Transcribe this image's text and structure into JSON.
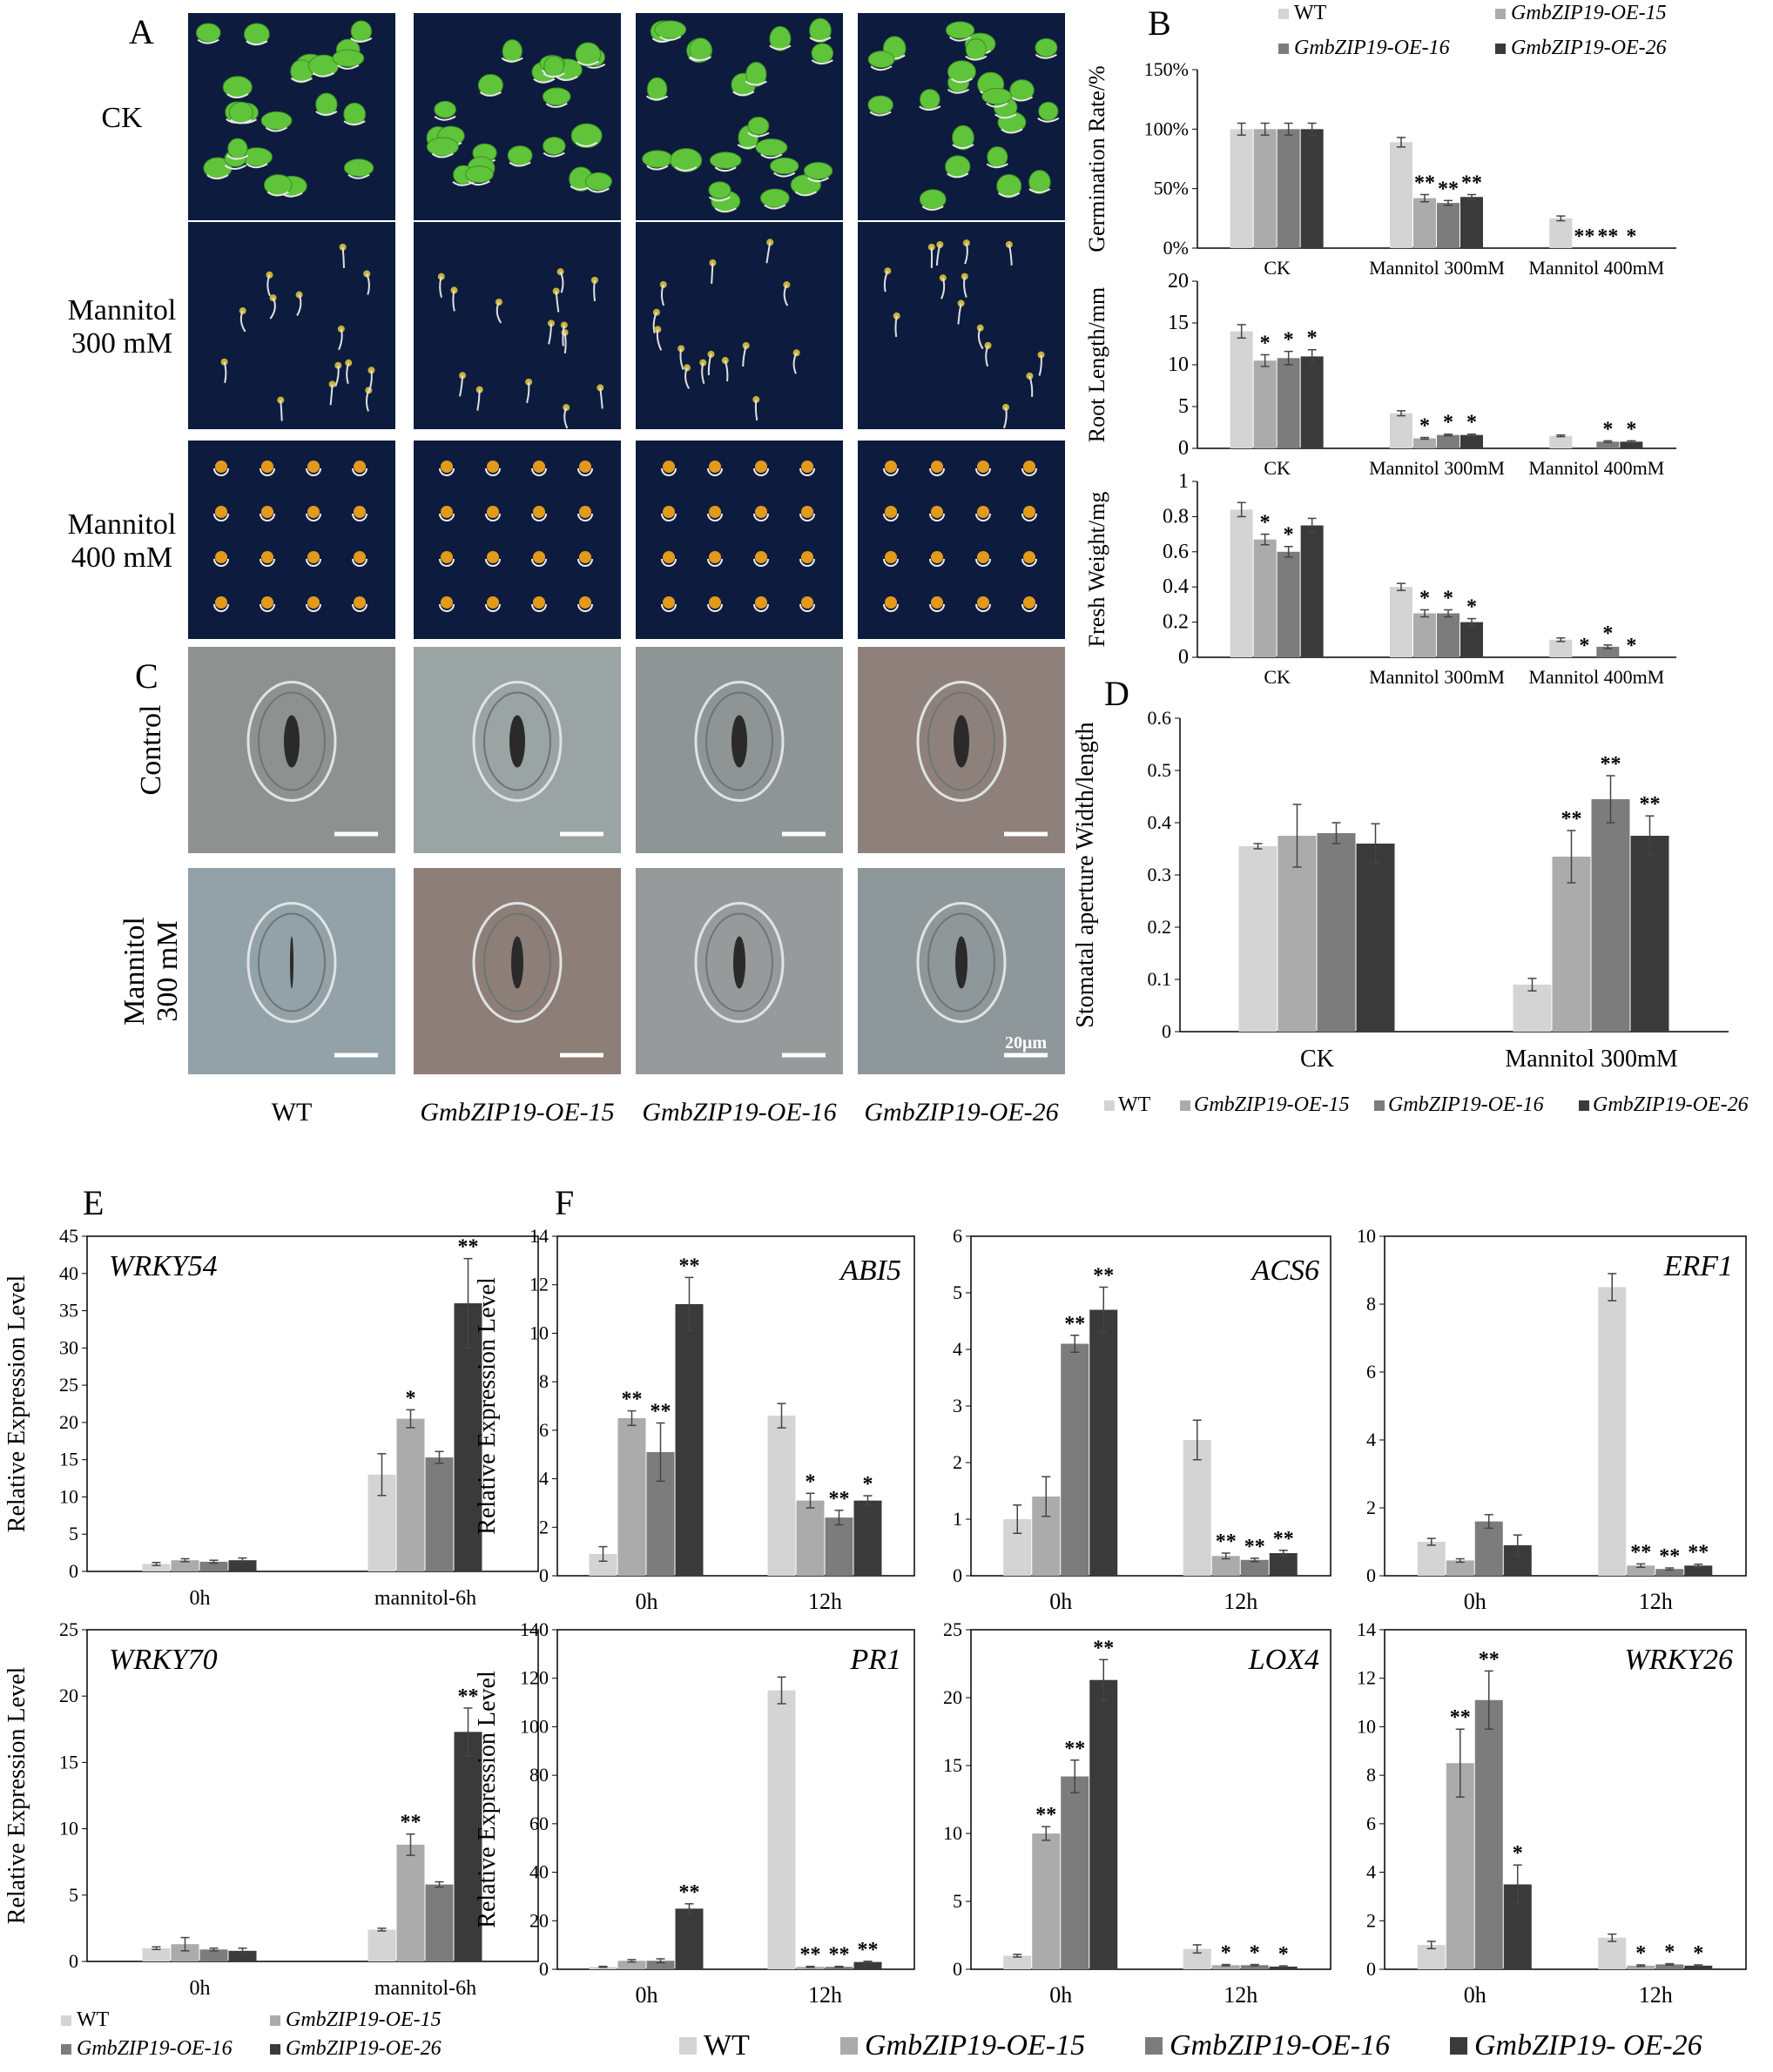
{
  "colors": {
    "WT": "#d4d4d4",
    "OE15": "#ababab",
    "OE16": "#7c7c7c",
    "OE26": "#3a3a3a"
  },
  "legend": [
    {
      "key": "WT",
      "label": "WT",
      "italic": false
    },
    {
      "key": "OE15",
      "label": "GmbZIP19-OE-15",
      "italic": true
    },
    {
      "key": "OE16",
      "label": "GmbZIP19-OE-16",
      "italic": true
    },
    {
      "key": "OE26",
      "label": "GmbZIP19-OE-26",
      "italic": true
    }
  ],
  "legend_F": [
    {
      "key": "WT",
      "label": "WT"
    },
    {
      "key": "OE15",
      "label": "GmbZIP19-OE-15"
    },
    {
      "key": "OE16",
      "label": "GmbZIP19-OE-16"
    },
    {
      "key": "OE26",
      "label": "GmbZIP19- OE-26"
    }
  ],
  "panel_letters": [
    "A",
    "B",
    "C",
    "D",
    "E",
    "F"
  ],
  "photos_A": {
    "row_labels": [
      [
        "CK"
      ],
      [
        "Mannitol",
        "300 mM"
      ],
      [
        "Mannitol",
        "400 mM"
      ]
    ],
    "row_types": [
      "green",
      "sparse",
      "seeds"
    ]
  },
  "photos_C": {
    "row_labels": [
      [
        "Control"
      ],
      [
        "Mannitol",
        "300 mM"
      ]
    ],
    "scale_bar": "20μm",
    "column_labels": [
      {
        "text": "WT",
        "italic": false
      },
      {
        "text": "GmbZIP19-OE-15",
        "italic": true
      },
      {
        "text": "GmbZIP19-OE-16",
        "italic": true
      },
      {
        "text": "GmbZIP19-OE-26",
        "italic": true
      }
    ],
    "tints": [
      [
        "#8d9290",
        "#9aa4a2",
        "#8f9494",
        "#8e817b"
      ],
      [
        "#93a1a8",
        "#8d7e78",
        "#969a9a",
        "#8e9799"
      ]
    ]
  },
  "chart_data": [
    {
      "id": "B1",
      "type": "bar",
      "ylabel": "Germination Rate/%",
      "yticks": [
        "0%",
        "50%",
        "100%",
        "150%"
      ],
      "ylim": [
        0,
        150
      ],
      "categories": [
        "CK",
        "Mannitol 300mM",
        "Mannitol 400mM"
      ],
      "series": [
        {
          "name": "WT",
          "values": [
            100,
            89,
            25
          ],
          "err": [
            5,
            4,
            2
          ]
        },
        {
          "name": "GmbZIP19-OE-15",
          "values": [
            100,
            42,
            0
          ],
          "err": [
            5,
            3,
            0
          ]
        },
        {
          "name": "GmbZIP19-OE-16",
          "values": [
            100,
            38,
            0
          ],
          "err": [
            5,
            2,
            0
          ]
        },
        {
          "name": "GmbZIP19-OE-26",
          "values": [
            100,
            43,
            0
          ],
          "err": [
            5,
            2,
            0
          ]
        }
      ],
      "stars": [
        [
          "",
          "",
          ""
        ],
        [
          "",
          "**",
          "**"
        ],
        [
          "",
          "**",
          "**"
        ],
        [
          "",
          "**",
          "*"
        ]
      ]
    },
    {
      "id": "B2",
      "type": "bar",
      "ylabel": "Root Length/mm",
      "yticks": [
        "0",
        "5",
        "10",
        "15",
        "20"
      ],
      "ylim": [
        0,
        20
      ],
      "categories": [
        "CK",
        "Mannitol 300mM",
        "Mannitol 400mM"
      ],
      "series": [
        {
          "name": "WT",
          "values": [
            14,
            4.2,
            1.5
          ],
          "err": [
            0.8,
            0.3,
            0.1
          ]
        },
        {
          "name": "GmbZIP19-OE-15",
          "values": [
            10.5,
            1.2,
            0
          ],
          "err": [
            0.7,
            0.1,
            0
          ]
        },
        {
          "name": "GmbZIP19-OE-16",
          "values": [
            10.8,
            1.6,
            0.8
          ],
          "err": [
            0.8,
            0.1,
            0.1
          ]
        },
        {
          "name": "GmbZIP19-OE-26",
          "values": [
            11,
            1.6,
            0.8
          ],
          "err": [
            0.8,
            0.1,
            0.1
          ]
        }
      ],
      "stars": [
        [
          "",
          "",
          ""
        ],
        [
          "*",
          "*",
          ""
        ],
        [
          "*",
          "*",
          "*"
        ],
        [
          "*",
          "*",
          "*"
        ]
      ]
    },
    {
      "id": "B3",
      "type": "bar",
      "ylabel": "Fresh Weight/mg",
      "yticks": [
        "0",
        "0.2",
        "0.4",
        "0.6",
        "0.8",
        "1"
      ],
      "ylim": [
        0,
        1
      ],
      "categories": [
        "CK",
        "Mannitol 300mM",
        "Mannitol 400mM"
      ],
      "series": [
        {
          "name": "WT",
          "values": [
            0.84,
            0.4,
            0.1
          ],
          "err": [
            0.04,
            0.02,
            0.01
          ]
        },
        {
          "name": "GmbZIP19-OE-15",
          "values": [
            0.67,
            0.25,
            0
          ],
          "err": [
            0.03,
            0.02,
            0
          ]
        },
        {
          "name": "GmbZIP19-OE-16",
          "values": [
            0.6,
            0.25,
            0.06
          ],
          "err": [
            0.03,
            0.02,
            0.01
          ]
        },
        {
          "name": "GmbZIP19-OE-26",
          "values": [
            0.75,
            0.2,
            0
          ],
          "err": [
            0.04,
            0.02,
            0
          ]
        }
      ],
      "stars": [
        [
          "",
          "",
          ""
        ],
        [
          "*",
          "*",
          "*"
        ],
        [
          "*",
          "*",
          "*"
        ],
        [
          "",
          "*",
          "*"
        ]
      ]
    },
    {
      "id": "D",
      "type": "bar",
      "ylabel": "Stomatal aperture Width/length",
      "yticks": [
        "0",
        "0.1",
        "0.2",
        "0.3",
        "0.4",
        "0.5",
        "0.6"
      ],
      "ylim": [
        0,
        0.6
      ],
      "categories": [
        "CK",
        "Mannitol 300mM"
      ],
      "series": [
        {
          "name": "WT",
          "values": [
            0.355,
            0.09
          ],
          "err": [
            0.005,
            0.012
          ]
        },
        {
          "name": "GmbZIP19-OE-15",
          "values": [
            0.375,
            0.335
          ],
          "err": [
            0.06,
            0.05
          ]
        },
        {
          "name": "GmbZIP19-OE-16",
          "values": [
            0.38,
            0.445
          ],
          "err": [
            0.02,
            0.045
          ]
        },
        {
          "name": "GmbZIP19-OE-26",
          "values": [
            0.36,
            0.375
          ],
          "err": [
            0.038,
            0.038
          ]
        }
      ],
      "stars": [
        [
          "",
          ""
        ],
        [
          "",
          "**"
        ],
        [
          "",
          "**"
        ],
        [
          "",
          "**"
        ]
      ]
    },
    {
      "id": "E1",
      "type": "bar",
      "gene": "WRKY54",
      "ylabel": "Relative Expression Level",
      "yticks": [
        "0",
        "5",
        "10",
        "15",
        "20",
        "25",
        "30",
        "35",
        "40",
        "45"
      ],
      "ylim": [
        0,
        45
      ],
      "categories": [
        "0h",
        "mannitol-6h"
      ],
      "series": [
        {
          "name": "WT",
          "values": [
            1,
            13
          ],
          "err": [
            0.2,
            2.8
          ]
        },
        {
          "name": "GmbZIP19-OE-15",
          "values": [
            1.5,
            20.5
          ],
          "err": [
            0.2,
            1.2
          ]
        },
        {
          "name": "GmbZIP19-OE-16",
          "values": [
            1.3,
            15.3
          ],
          "err": [
            0.2,
            0.8
          ]
        },
        {
          "name": "GmbZIP19-OE-26",
          "values": [
            1.5,
            36
          ],
          "err": [
            0.3,
            6
          ]
        }
      ],
      "stars": [
        [
          "",
          ""
        ],
        [
          "",
          "*"
        ],
        [
          "",
          ""
        ],
        [
          "",
          "**"
        ]
      ]
    },
    {
      "id": "E2",
      "type": "bar",
      "gene": "WRKY70",
      "ylabel": "Relative Expression Level",
      "yticks": [
        "0",
        "5",
        "10",
        "15",
        "20",
        "25"
      ],
      "ylim": [
        0,
        25
      ],
      "categories": [
        "0h",
        "mannitol-6h"
      ],
      "series": [
        {
          "name": "WT",
          "values": [
            1,
            2.4
          ],
          "err": [
            0.1,
            0.1
          ]
        },
        {
          "name": "GmbZIP19-OE-15",
          "values": [
            1.3,
            8.8
          ],
          "err": [
            0.5,
            0.8
          ]
        },
        {
          "name": "GmbZIP19-OE-16",
          "values": [
            0.9,
            5.8
          ],
          "err": [
            0.1,
            0.2
          ]
        },
        {
          "name": "GmbZIP19-OE-26",
          "values": [
            0.8,
            17.3
          ],
          "err": [
            0.2,
            1.8
          ]
        }
      ],
      "stars": [
        [
          "",
          ""
        ],
        [
          "",
          "**"
        ],
        [
          "",
          ""
        ],
        [
          "",
          "**"
        ]
      ]
    },
    {
      "id": "F1",
      "type": "bar",
      "gene": "ABI5",
      "ylabel": "Relative Expression Level",
      "yticks": [
        "0",
        "2",
        "4",
        "6",
        "8",
        "10",
        "12",
        "14"
      ],
      "ylim": [
        0,
        14
      ],
      "categories": [
        "0h",
        "12h"
      ],
      "series": [
        {
          "name": "WT",
          "values": [
            0.9,
            6.6
          ],
          "err": [
            0.3,
            0.5
          ]
        },
        {
          "name": "GmbZIP19-OE-15",
          "values": [
            6.5,
            3.1
          ],
          "err": [
            0.3,
            0.3
          ]
        },
        {
          "name": "GmbZIP19-OE-16",
          "values": [
            5.1,
            2.4
          ],
          "err": [
            1.2,
            0.3
          ]
        },
        {
          "name": "GmbZIP19-OE-26",
          "values": [
            11.2,
            3.1
          ],
          "err": [
            1.1,
            0.2
          ]
        }
      ],
      "stars": [
        [
          "",
          ""
        ],
        [
          "**",
          "*"
        ],
        [
          "**",
          "**"
        ],
        [
          "**",
          "*"
        ]
      ]
    },
    {
      "id": "F2",
      "type": "bar",
      "gene": "ACS6",
      "ylabel": "",
      "yticks": [
        "0",
        "1",
        "2",
        "3",
        "4",
        "5",
        "6"
      ],
      "ylim": [
        0,
        6
      ],
      "categories": [
        "0h",
        "12h"
      ],
      "series": [
        {
          "name": "WT",
          "values": [
            1,
            2.4
          ],
          "err": [
            0.25,
            0.35
          ]
        },
        {
          "name": "GmbZIP19-OE-15",
          "values": [
            1.4,
            0.35
          ],
          "err": [
            0.35,
            0.05
          ]
        },
        {
          "name": "GmbZIP19-OE-16",
          "values": [
            4.1,
            0.28
          ],
          "err": [
            0.15,
            0.03
          ]
        },
        {
          "name": "GmbZIP19-OE-26",
          "values": [
            4.7,
            0.4
          ],
          "err": [
            0.4,
            0.05
          ]
        }
      ],
      "stars": [
        [
          "",
          ""
        ],
        [
          "",
          "**"
        ],
        [
          "**",
          "**"
        ],
        [
          "**",
          "**"
        ]
      ]
    },
    {
      "id": "F3",
      "type": "bar",
      "gene": "ERF1",
      "ylabel": "",
      "yticks": [
        "0",
        "2",
        "4",
        "6",
        "8",
        "10"
      ],
      "ylim": [
        0,
        10
      ],
      "categories": [
        "0h",
        "12h"
      ],
      "series": [
        {
          "name": "WT",
          "values": [
            1,
            8.5
          ],
          "err": [
            0.1,
            0.4
          ]
        },
        {
          "name": "GmbZIP19-OE-15",
          "values": [
            0.45,
            0.3
          ],
          "err": [
            0.05,
            0.05
          ]
        },
        {
          "name": "GmbZIP19-OE-16",
          "values": [
            1.6,
            0.2
          ],
          "err": [
            0.2,
            0.03
          ]
        },
        {
          "name": "GmbZIP19-OE-26",
          "values": [
            0.9,
            0.3
          ],
          "err": [
            0.3,
            0.04
          ]
        }
      ],
      "stars": [
        [
          "",
          ""
        ],
        [
          "",
          "**"
        ],
        [
          "",
          "**"
        ],
        [
          "",
          "**"
        ]
      ]
    },
    {
      "id": "F4",
      "type": "bar",
      "gene": "PR1",
      "ylabel": "Relative Expression Level",
      "yticks": [
        "0",
        "20",
        "40",
        "60",
        "80",
        "100",
        "120",
        "140"
      ],
      "ylim": [
        0,
        140
      ],
      "categories": [
        "0h",
        "12h"
      ],
      "series": [
        {
          "name": "WT",
          "values": [
            1,
            115
          ],
          "err": [
            0.2,
            5.5
          ]
        },
        {
          "name": "GmbZIP19-OE-15",
          "values": [
            3.5,
            1
          ],
          "err": [
            0.5,
            0.2
          ]
        },
        {
          "name": "GmbZIP19-OE-16",
          "values": [
            3.5,
            1
          ],
          "err": [
            0.8,
            0.2
          ]
        },
        {
          "name": "GmbZIP19-OE-26",
          "values": [
            25,
            3
          ],
          "err": [
            2,
            0.3
          ]
        }
      ],
      "stars": [
        [
          "",
          ""
        ],
        [
          "",
          "**"
        ],
        [
          "",
          "**"
        ],
        [
          "**",
          "**"
        ]
      ]
    },
    {
      "id": "F5",
      "type": "bar",
      "gene": "LOX4",
      "ylabel": "",
      "yticks": [
        "0",
        "5",
        "10",
        "15",
        "20",
        "25"
      ],
      "ylim": [
        0,
        25
      ],
      "categories": [
        "0h",
        "12h"
      ],
      "series": [
        {
          "name": "WT",
          "values": [
            1,
            1.5
          ],
          "err": [
            0.1,
            0.3
          ]
        },
        {
          "name": "GmbZIP19-OE-15",
          "values": [
            10,
            0.3
          ],
          "err": [
            0.5,
            0.05
          ]
        },
        {
          "name": "GmbZIP19-OE-16",
          "values": [
            14.2,
            0.3
          ],
          "err": [
            1.2,
            0.05
          ]
        },
        {
          "name": "GmbZIP19-OE-26",
          "values": [
            21.3,
            0.2
          ],
          "err": [
            1.5,
            0.05
          ]
        }
      ],
      "stars": [
        [
          "",
          ""
        ],
        [
          "**",
          "*"
        ],
        [
          "**",
          "*"
        ],
        [
          "**",
          "*"
        ]
      ]
    },
    {
      "id": "F6",
      "type": "bar",
      "gene": "WRKY26",
      "ylabel": "",
      "yticks": [
        "0",
        "2",
        "4",
        "6",
        "8",
        "10",
        "12",
        "14"
      ],
      "ylim": [
        0,
        14
      ],
      "categories": [
        "0h",
        "12h"
      ],
      "series": [
        {
          "name": "WT",
          "values": [
            1,
            1.3
          ],
          "err": [
            0.15,
            0.15
          ]
        },
        {
          "name": "GmbZIP19-OE-15",
          "values": [
            8.5,
            0.15
          ],
          "err": [
            1.4,
            0.03
          ]
        },
        {
          "name": "GmbZIP19-OE-16",
          "values": [
            11.1,
            0.2
          ],
          "err": [
            1.2,
            0.03
          ]
        },
        {
          "name": "GmbZIP19-OE-26",
          "values": [
            3.5,
            0.15
          ],
          "err": [
            0.8,
            0.03
          ]
        }
      ],
      "stars": [
        [
          "",
          ""
        ],
        [
          "**",
          "*"
        ],
        [
          "**",
          "*"
        ],
        [
          "*",
          "*"
        ]
      ]
    }
  ]
}
